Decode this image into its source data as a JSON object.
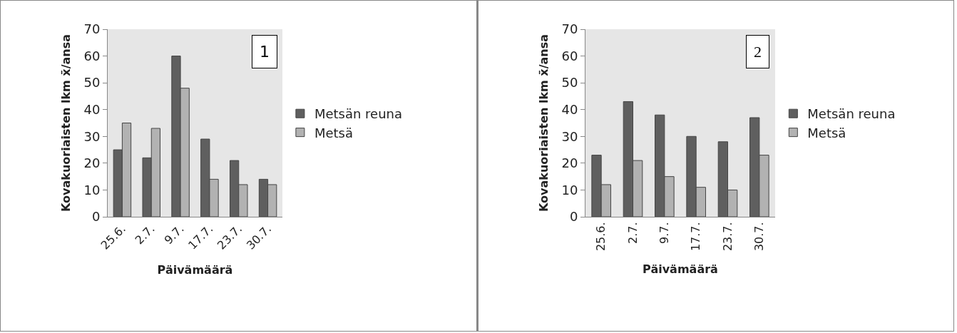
{
  "chart_data": [
    {
      "type": "bar",
      "categories": [
        "25.6.",
        "2.7.",
        "9.7.",
        "17.7.",
        "23.7.",
        "30.7."
      ],
      "xlabel": "Päivämäärä",
      "ylabel": "Kovakuoriaisten lkm x̄/ansa",
      "annotations": [
        "1"
      ],
      "ylim": [
        0,
        70
      ],
      "yticks": [
        0,
        10,
        20,
        30,
        40,
        50,
        60,
        70
      ],
      "grid": false,
      "legend": "right",
      "series": [
        {
          "name": "Metsän reuna",
          "color": "#5f5f5f",
          "values": [
            25,
            22,
            60,
            29,
            21,
            14
          ]
        },
        {
          "name": "Metsä",
          "color": "#b2b2b2",
          "values": [
            35,
            33,
            48,
            14,
            12,
            12
          ]
        }
      ]
    },
    {
      "type": "bar",
      "categories": [
        "25.6.",
        "2.7.",
        "9.7.",
        "17.7.",
        "23.7.",
        "30.7."
      ],
      "xlabel": "Päivämäärä",
      "ylabel": "Kovakuoriaisten lkm x̄/ansa",
      "annotations": [
        "2"
      ],
      "ylim": [
        0,
        70
      ],
      "yticks": [
        0,
        10,
        20,
        30,
        40,
        50,
        60,
        70
      ],
      "grid": false,
      "legend": "right",
      "series": [
        {
          "name": "Metsän reuna",
          "color": "#5f5f5f",
          "values": [
            23,
            43,
            38,
            30,
            28,
            37
          ]
        },
        {
          "name": "Metsä",
          "color": "#b2b2b2",
          "values": [
            12,
            21,
            15,
            11,
            10,
            23
          ]
        }
      ]
    }
  ]
}
